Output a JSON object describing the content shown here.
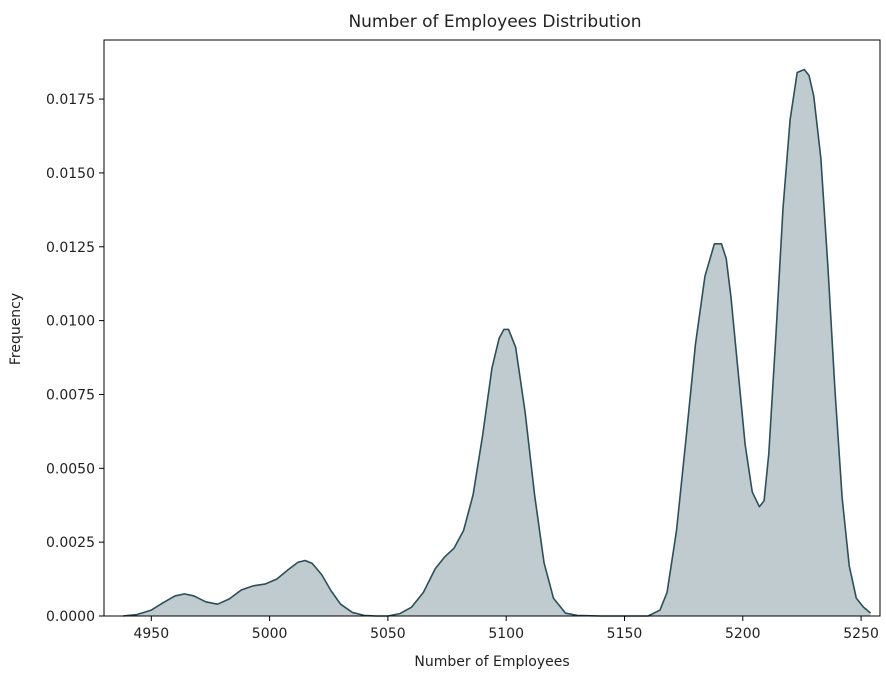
{
  "chart_data": {
    "type": "area",
    "title": "Number of Employees Distribution",
    "xlabel": "Number of Employees",
    "ylabel": "Frequency",
    "xlim": [
      4930,
      5258
    ],
    "ylim": [
      0,
      0.0195
    ],
    "x_ticks": [
      4950,
      5000,
      5050,
      5100,
      5150,
      5200,
      5250
    ],
    "y_ticks": [
      0.0,
      0.0025,
      0.005,
      0.0075,
      0.01,
      0.0125,
      0.015,
      0.0175
    ],
    "y_tick_labels": [
      "0.0000",
      "0.0025",
      "0.0050",
      "0.0075",
      "0.0100",
      "0.0125",
      "0.0150",
      "0.0175"
    ],
    "grid": false,
    "fill_color": "#bfcbce",
    "line_color": "#2c4f59",
    "series": [
      {
        "x": [
          4938,
          4944,
          4950,
          4955,
          4960,
          4964,
          4968,
          4973,
          4978,
          4983,
          4988,
          4993,
          4998,
          5003,
          5008,
          5012,
          5015,
          5018,
          5022,
          5026,
          5030,
          5035,
          5040,
          5045,
          5050,
          5055,
          5060,
          5065,
          5070,
          5074,
          5078,
          5082,
          5086,
          5090,
          5094,
          5097,
          5099,
          5101,
          5104,
          5108,
          5112,
          5116,
          5120,
          5125,
          5130,
          5140,
          5150,
          5160,
          5165,
          5168,
          5172,
          5176,
          5180,
          5184,
          5188,
          5191,
          5193,
          5195,
          5198,
          5201,
          5204,
          5207,
          5209,
          5211,
          5214,
          5217,
          5220,
          5223,
          5226,
          5228,
          5230,
          5233,
          5236,
          5239,
          5242,
          5245,
          5248,
          5251,
          5254
        ],
        "y": [
          0.0,
          5e-05,
          0.0002,
          0.00045,
          0.00068,
          0.00075,
          0.00068,
          0.00048,
          0.0004,
          0.00058,
          0.00088,
          0.00102,
          0.00108,
          0.00125,
          0.00158,
          0.00182,
          0.00188,
          0.00178,
          0.0014,
          0.00085,
          0.0004,
          0.00012,
          2e-05,
          0.0,
          0.0,
          8e-05,
          0.0003,
          0.0008,
          0.0016,
          0.002,
          0.0023,
          0.0029,
          0.0041,
          0.0061,
          0.0084,
          0.0094,
          0.0097,
          0.0097,
          0.0091,
          0.0069,
          0.0041,
          0.0018,
          0.0006,
          0.0001,
          2e-05,
          0.0,
          0.0,
          0.0,
          0.0002,
          0.0008,
          0.0029,
          0.006,
          0.0092,
          0.0115,
          0.0126,
          0.0126,
          0.0121,
          0.0108,
          0.0083,
          0.0058,
          0.0042,
          0.0037,
          0.0039,
          0.0055,
          0.0095,
          0.0138,
          0.0168,
          0.0184,
          0.0185,
          0.0183,
          0.0176,
          0.0155,
          0.0118,
          0.0076,
          0.004,
          0.0017,
          0.0006,
          0.0003,
          0.0001
        ]
      }
    ]
  }
}
